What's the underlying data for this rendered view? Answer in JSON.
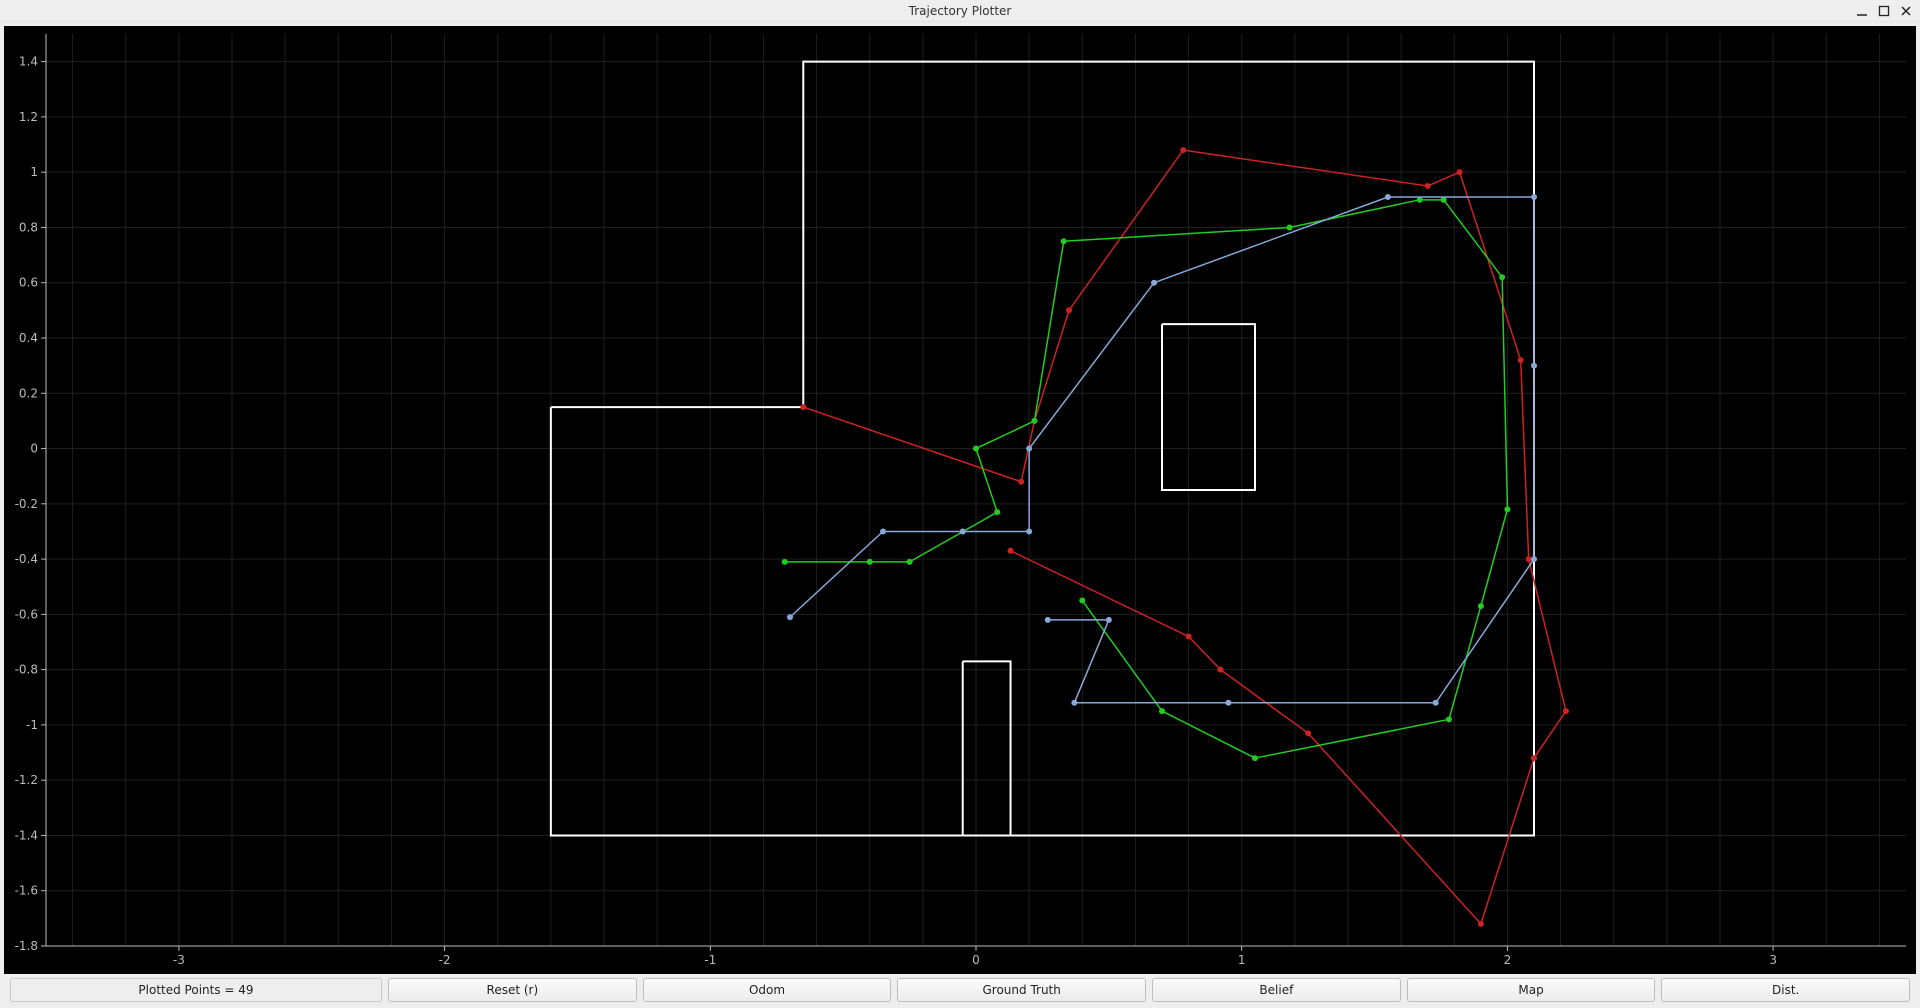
{
  "window": {
    "title": "Trajectory Plotter",
    "min_icon": "minimize-icon",
    "max_icon": "maximize-icon",
    "close_icon": "close-icon"
  },
  "status": {
    "label": "Plotted Points = 49"
  },
  "buttons": {
    "reset": "Reset (r)",
    "odom": "Odom",
    "ground_truth": "Ground Truth",
    "belief": "Belief",
    "map": "Map",
    "dist": "Dist."
  },
  "chart": {
    "type": "line",
    "background_color": "#000000",
    "axis_label_color": "#bbbbbb",
    "axis_spine_color": "#bbbbbb",
    "grid_color": "#1f1f1f",
    "label_fontsize": 12,
    "xlim": [
      -3.5,
      3.5
    ],
    "ylim": [
      -1.8,
      1.5
    ],
    "xticks": [
      -3,
      -2,
      -1,
      0,
      1,
      2,
      3
    ],
    "yticks": [
      -1.8,
      -1.6,
      -1.4,
      -1.2,
      -1.0,
      -0.8,
      -0.6,
      -0.4,
      -0.2,
      0,
      0.2,
      0.4,
      0.6,
      0.8,
      1.0,
      1.2,
      1.4
    ],
    "xtick_labels": [
      "-3",
      "-2",
      "-1",
      "0",
      "1",
      "2",
      "3"
    ],
    "ytick_labels": [
      "-1.8",
      "-1.6",
      "-1.4",
      "-1.2",
      "-1",
      "-0.8",
      "-0.6",
      "-0.4",
      "-0.2",
      "0",
      "0.2",
      "0.4",
      "0.6",
      "0.8",
      "1",
      "1.2",
      "1.4"
    ],
    "map_color": "#ffffff",
    "map_stroke_width": 2,
    "map_polylines": [
      [
        [
          -1.6,
          0.15
        ],
        [
          -0.65,
          0.15
        ],
        [
          -0.65,
          1.4
        ],
        [
          2.1,
          1.4
        ],
        [
          2.1,
          -1.4
        ],
        [
          -1.6,
          -1.4
        ],
        [
          -1.6,
          0.15
        ]
      ],
      [
        [
          0.7,
          0.45
        ],
        [
          1.05,
          0.45
        ],
        [
          1.05,
          -0.15
        ],
        [
          0.7,
          -0.15
        ],
        [
          0.7,
          0.45
        ]
      ],
      [
        [
          -0.05,
          -0.77
        ],
        [
          0.13,
          -0.77
        ],
        [
          0.13,
          -1.4
        ],
        [
          -0.05,
          -1.4
        ],
        [
          -0.05,
          -0.77
        ]
      ]
    ],
    "series": [
      {
        "name": "odom",
        "color": "#cc2222",
        "marker_color": "#cc2222",
        "marker_size": 3,
        "line_width": 1.5,
        "points": [
          [
            -0.65,
            0.15
          ],
          [
            0.17,
            -0.12
          ],
          [
            0.22,
            0.1
          ],
          [
            0.35,
            0.5
          ],
          [
            0.78,
            1.08
          ],
          [
            1.7,
            0.95
          ],
          [
            1.82,
            1.0
          ],
          [
            2.05,
            0.32
          ],
          [
            2.08,
            -0.4
          ],
          [
            2.22,
            -0.95
          ],
          [
            2.1,
            -1.12
          ],
          [
            1.9,
            -1.72
          ],
          [
            1.25,
            -1.03
          ],
          [
            0.92,
            -0.8
          ],
          [
            0.8,
            -0.68
          ],
          [
            0.13,
            -0.37
          ]
        ]
      },
      {
        "name": "ground_truth",
        "color": "#22cc22",
        "marker_color": "#22cc22",
        "marker_size": 3,
        "line_width": 1.5,
        "points": [
          [
            -0.72,
            -0.41
          ],
          [
            -0.4,
            -0.41
          ],
          [
            -0.25,
            -0.41
          ],
          [
            0.08,
            -0.23
          ],
          [
            0.0,
            0.0
          ],
          [
            0.22,
            0.1
          ],
          [
            0.33,
            0.75
          ],
          [
            1.18,
            0.8
          ],
          [
            1.67,
            0.9
          ],
          [
            1.76,
            0.9
          ],
          [
            1.98,
            0.62
          ],
          [
            2.0,
            -0.22
          ],
          [
            1.9,
            -0.57
          ],
          [
            1.78,
            -0.98
          ],
          [
            1.05,
            -1.12
          ],
          [
            0.7,
            -0.95
          ],
          [
            0.4,
            -0.55
          ]
        ]
      },
      {
        "name": "belief",
        "color": "#88a8d8",
        "marker_color": "#88a8d8",
        "marker_size": 3,
        "line_width": 1.5,
        "points": [
          [
            -0.7,
            -0.61
          ],
          [
            -0.35,
            -0.3
          ],
          [
            -0.05,
            -0.3
          ],
          [
            0.2,
            -0.3
          ],
          [
            0.2,
            0.0
          ],
          [
            0.67,
            0.6
          ],
          [
            1.55,
            0.91
          ],
          [
            2.1,
            0.91
          ],
          [
            2.1,
            0.3
          ],
          [
            2.1,
            -0.4
          ],
          [
            1.73,
            -0.92
          ],
          [
            0.95,
            -0.92
          ],
          [
            0.37,
            -0.92
          ],
          [
            0.5,
            -0.62
          ],
          [
            0.27,
            -0.62
          ]
        ]
      }
    ]
  }
}
